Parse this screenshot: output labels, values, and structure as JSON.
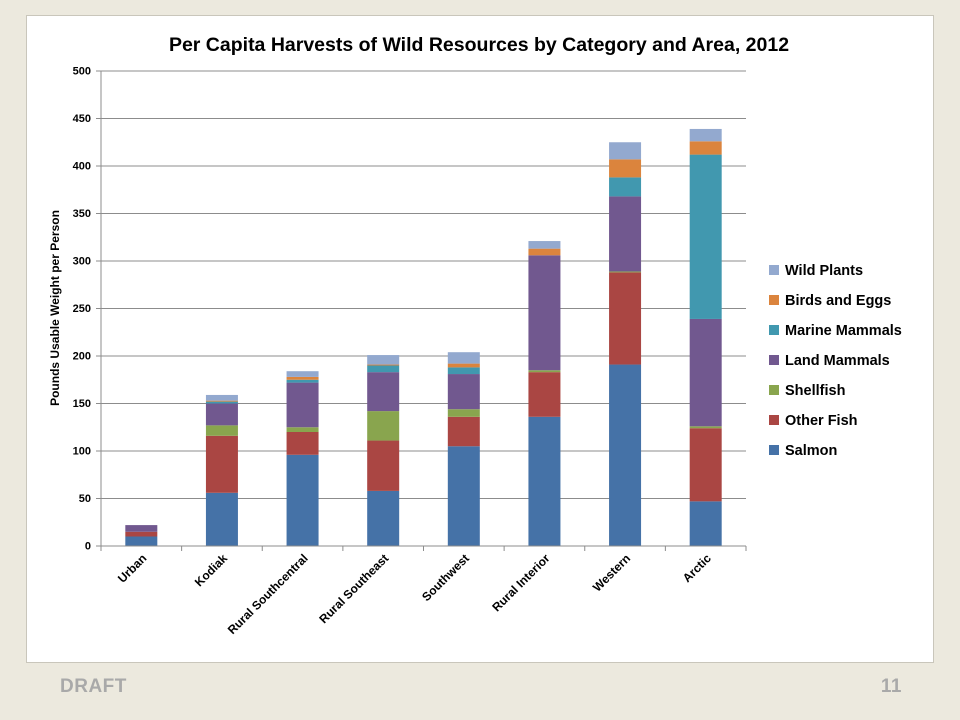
{
  "footer": {
    "draft": "DRAFT",
    "page": "11"
  },
  "chart_data": {
    "type": "bar",
    "stacked": true,
    "title": "Per Capita Harvests of Wild Resources by Category and Area, 2012",
    "xlabel": "",
    "ylabel": "Pounds Usable Weight per Person",
    "ylim": [
      0,
      500
    ],
    "yticks": [
      0,
      50,
      100,
      150,
      200,
      250,
      300,
      350,
      400,
      450,
      500
    ],
    "grid": true,
    "legend_position": "right",
    "categories": [
      "Urban",
      "Kodiak",
      "Rural Southcentral",
      "Rural Southeast",
      "Southwest",
      "Rural Interior",
      "Western",
      "Arctic"
    ],
    "series": [
      {
        "name": "Salmon",
        "color": "#4572a7",
        "values": [
          10,
          56,
          96,
          58,
          105,
          136,
          191,
          47
        ]
      },
      {
        "name": "Other Fish",
        "color": "#aa4643",
        "values": [
          5,
          60,
          24,
          53,
          31,
          47,
          97,
          77
        ]
      },
      {
        "name": "Shellfish",
        "color": "#89a54e",
        "values": [
          0,
          11,
          5,
          31,
          8,
          2,
          1,
          2
        ]
      },
      {
        "name": "Land Mammals",
        "color": "#71588f",
        "values": [
          7,
          23,
          47,
          41,
          37,
          121,
          79,
          113
        ]
      },
      {
        "name": "Marine Mammals",
        "color": "#4198af",
        "values": [
          0,
          2,
          3,
          7,
          7,
          0,
          20,
          173
        ]
      },
      {
        "name": "Birds and Eggs",
        "color": "#db843d",
        "values": [
          0,
          1,
          3,
          1,
          4,
          7,
          19,
          14
        ]
      },
      {
        "name": "Wild Plants",
        "color": "#93a9cf",
        "values": [
          0,
          6,
          6,
          10,
          12,
          8,
          18,
          13
        ]
      }
    ]
  }
}
